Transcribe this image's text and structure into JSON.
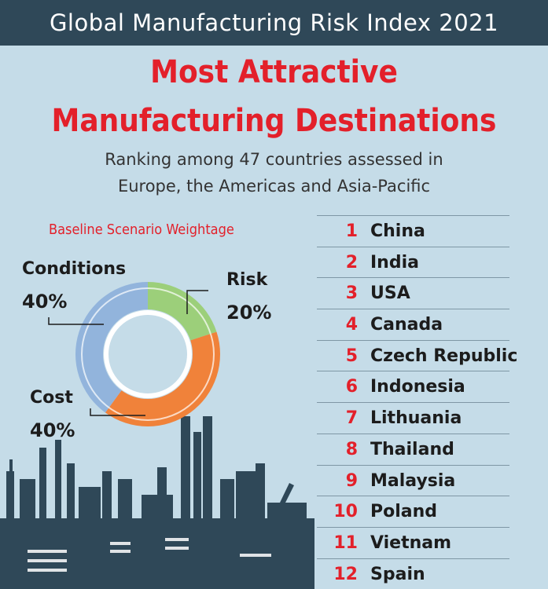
{
  "header": {
    "title": "Global Manufacturing Risk Index 2021"
  },
  "headline": {
    "line1": "Most Attractive",
    "line2": "Manufacturing Destinations"
  },
  "subtitle": {
    "line1": "Ranking among 47 countries assessed in",
    "line2": "Europe, the Americas and Asia-Pacific"
  },
  "colors": {
    "header_bg": "#2f4858",
    "accent_red": "#e3202a",
    "background": "#c5dce8",
    "skyline": "#2f4858"
  },
  "chart_data": {
    "type": "pie",
    "title": "Baseline Scenario Weightage",
    "slices": [
      {
        "label": "Risk",
        "value": 20,
        "display": "20%",
        "color": "#9ccf7a"
      },
      {
        "label": "Cost",
        "value": 40,
        "display": "40%",
        "color": "#f0823a"
      },
      {
        "label": "Conditions",
        "value": 40,
        "display": "40%",
        "color": "#92b4dc"
      }
    ],
    "donut": true
  },
  "rankings": [
    {
      "rank": "1",
      "country": "China"
    },
    {
      "rank": "2",
      "country": "India"
    },
    {
      "rank": "3",
      "country": "USA"
    },
    {
      "rank": "4",
      "country": "Canada"
    },
    {
      "rank": "5",
      "country": "Czech Republic"
    },
    {
      "rank": "6",
      "country": "Indonesia"
    },
    {
      "rank": "7",
      "country": "Lithuania"
    },
    {
      "rank": "8",
      "country": "Thailand"
    },
    {
      "rank": "9",
      "country": "Malaysia"
    },
    {
      "rank": "10",
      "country": "Poland"
    },
    {
      "rank": "11",
      "country": "Vietnam"
    },
    {
      "rank": "12",
      "country": "Spain"
    }
  ]
}
